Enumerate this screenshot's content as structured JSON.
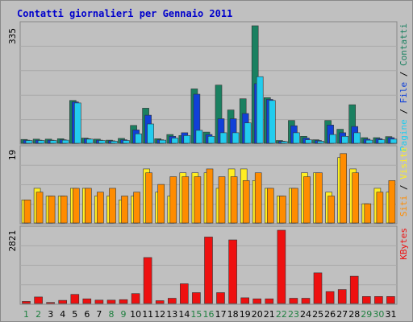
{
  "chart_data": {
    "title": "Contatti giornalieri per Gennaio 2011",
    "days": [
      "1",
      "2",
      "3",
      "4",
      "5",
      "6",
      "7",
      "8",
      "9",
      "10",
      "11",
      "12",
      "13",
      "14",
      "15",
      "16",
      "17",
      "18",
      "19",
      "20",
      "21",
      "22",
      "23",
      "24",
      "25",
      "26",
      "27",
      "28",
      "29",
      "30",
      "31"
    ],
    "weekend_days": [
      1,
      2,
      8,
      9,
      15,
      16,
      22,
      23,
      29,
      30
    ],
    "colors": {
      "contatti": "#1a8060",
      "file": "#1040d8",
      "pagine": "#22ccee",
      "siti": "#ff8c00",
      "visite": "#ffee22",
      "kbytes": "#ee1010",
      "weekday_label": "#000000",
      "weekend_label": "#208040"
    },
    "panels": [
      {
        "id": "top",
        "type": "bar",
        "max_label": "335",
        "ymax": 335,
        "legend": [
          {
            "text": "Pagine",
            "color": "#22ccee"
          },
          {
            "text": " / ",
            "color": "#000000"
          },
          {
            "text": "File",
            "color": "#1040d8"
          },
          {
            "text": " / ",
            "color": "#000000"
          },
          {
            "text": "Contatti",
            "color": "#1a8060"
          }
        ],
        "series": [
          {
            "name": "Contatti",
            "color": "#1a8060",
            "values": [
              11,
              12,
              12,
              13,
              122,
              15,
              12,
              9,
              14,
              51,
              100,
              13,
              25,
              22,
              155,
              32,
              166,
              95,
              127,
              335,
              130,
              8,
              65,
              20,
              10,
              65,
              40,
              110,
              16,
              16,
              19
            ]
          },
          {
            "name": "File",
            "color": "#1040d8",
            "values": [
              9,
              9,
              9,
              10,
              118,
              13,
              9,
              7,
              10,
              38,
              80,
              10,
              20,
              30,
              140,
              25,
              70,
              70,
              85,
              170,
              125,
              6,
              50,
              15,
              8,
              52,
              30,
              48,
              12,
              13,
              16
            ]
          },
          {
            "name": "Pagine",
            "color": "#22ccee",
            "values": [
              8,
              8,
              8,
              9,
              115,
              12,
              8,
              6,
              8,
              27,
              55,
              9,
              15,
              22,
              37,
              20,
              30,
              30,
              58,
              190,
              122,
              5,
              30,
              10,
              6,
              25,
              20,
              30,
              9,
              10,
              12
            ]
          }
        ]
      },
      {
        "id": "middle",
        "type": "bar",
        "max_label": "19",
        "ymax": 19,
        "legend": [
          {
            "text": "Siti",
            "color": "#ff8c00"
          },
          {
            "text": " / ",
            "color": "#000000"
          },
          {
            "text": "Visite",
            "color": "#ffee22"
          }
        ],
        "series": [
          {
            "name": "Visite",
            "color": "#ffee22",
            "values": [
              6,
              9,
              7,
              7,
              9,
              9,
              7,
              7,
              6,
              7,
              14,
              8,
              7,
              13,
              13,
              13,
              9,
              14,
              14,
              11,
              9,
              7,
              9,
              13,
              13,
              8,
              17,
              14,
              5,
              9,
              8
            ]
          },
          {
            "name": "Siti",
            "color": "#ff8c00",
            "values": [
              6,
              8,
              7,
              7,
              9,
              9,
              8,
              9,
              7,
              8,
              13,
              10,
              12,
              12,
              12,
              14,
              12,
              12,
              11,
              13,
              9,
              7,
              9,
              12,
              13,
              7,
              18,
              13,
              5,
              8,
              11
            ]
          }
        ]
      },
      {
        "id": "bottom",
        "type": "bar",
        "max_label": "2821",
        "ymax": 2821,
        "legend": [
          {
            "text": "KBytes",
            "color": "#ee1010"
          }
        ],
        "series": [
          {
            "name": "KBytes",
            "color": "#ee1010",
            "values": [
              80,
              250,
              40,
              120,
              350,
              180,
              130,
              130,
              150,
              380,
              1770,
              110,
              200,
              760,
              420,
              2560,
              420,
              2450,
              220,
              180,
              180,
              2821,
              200,
              200,
              1180,
              460,
              540,
              1050,
              270,
              270,
              270
            ]
          }
        ]
      }
    ]
  }
}
